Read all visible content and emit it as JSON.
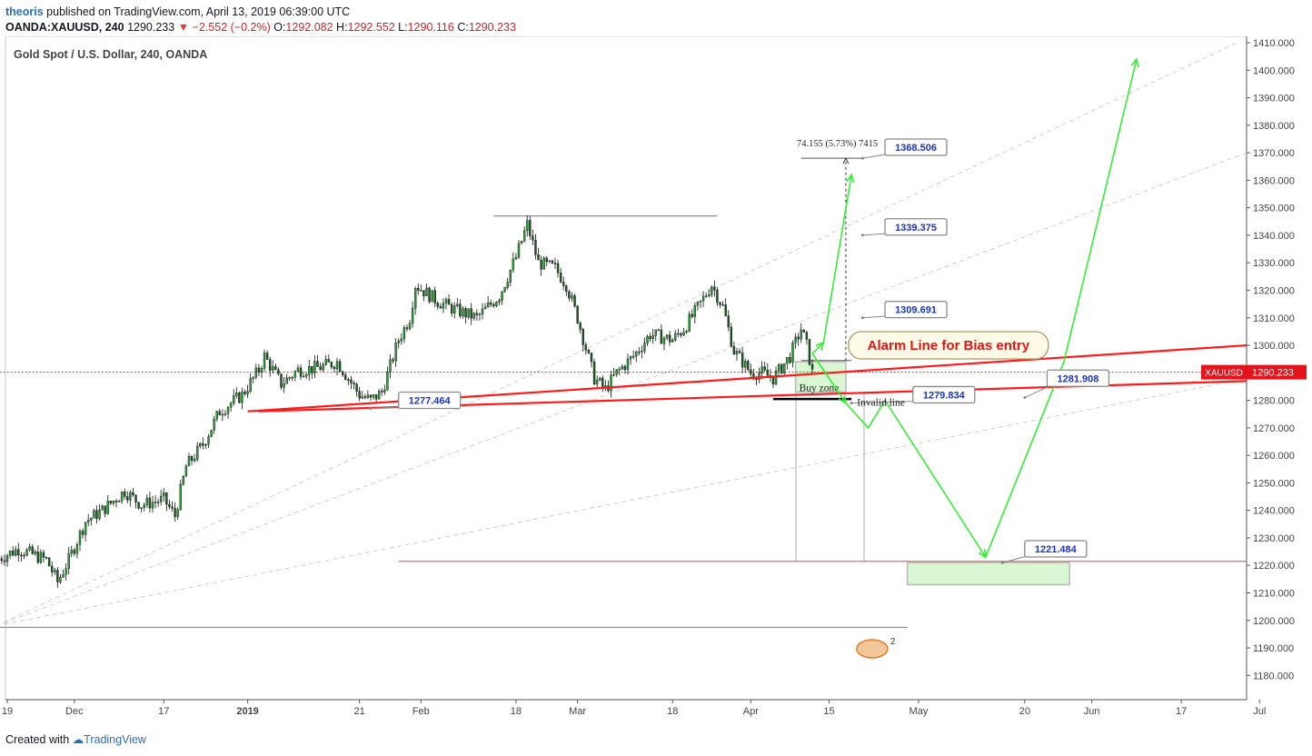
{
  "header": {
    "author": "theoris",
    "published_text": "published on TradingView.com, April 13, 2019 06:39:00 UTC",
    "symbol": "OANDA:XAUUSD, 240",
    "last": "1290.233",
    "change": "−2.552 (−0.2%)",
    "o_label": "O:",
    "o_value": "1292.082",
    "h_label": "H:",
    "h_value": "1292.552",
    "l_label": "L:",
    "l_value": "1290.116",
    "c_label": "C:",
    "c_value": "1290.233"
  },
  "footer": {
    "created_with": "Created with",
    "brand": "TradingView"
  },
  "chart_data": {
    "type": "candlestick",
    "title": "Gold Spot / U.S. Dollar, 240, OANDA",
    "y_axis": {
      "min": 1175,
      "max": 1412,
      "ticks": [
        "1180.000",
        "1190.000",
        "1200.000",
        "1210.000",
        "1220.000",
        "1230.000",
        "1240.000",
        "1250.000",
        "1260.000",
        "1270.000",
        "1280.000",
        "1290.000",
        "1300.000",
        "1310.000",
        "1320.000",
        "1330.000",
        "1340.000",
        "1350.000",
        "1360.000",
        "1370.000",
        "1380.000",
        "1390.000",
        "1400.000",
        "1410.000"
      ]
    },
    "x_axis": {
      "ticks": [
        {
          "label": "19",
          "date": "2018-11-19"
        },
        {
          "label": "Dec",
          "date": "2018-12-01"
        },
        {
          "label": "17",
          "date": "2018-12-17"
        },
        {
          "label": "2019",
          "date": "2019-01-01"
        },
        {
          "label": "21",
          "date": "2019-01-21"
        },
        {
          "label": "Feb",
          "date": "2019-02-01"
        },
        {
          "label": "18",
          "date": "2019-02-18"
        },
        {
          "label": "Mar",
          "date": "2019-03-01"
        },
        {
          "label": "18",
          "date": "2019-03-18"
        },
        {
          "label": "Apr",
          "date": "2019-04-01"
        },
        {
          "label": "15",
          "date": "2019-04-15"
        },
        {
          "label": "May",
          "date": "2019-05-01"
        },
        {
          "label": "20",
          "date": "2019-05-20"
        },
        {
          "label": "Jun",
          "date": "2019-06-01"
        },
        {
          "label": "17",
          "date": "2019-06-17"
        },
        {
          "label": "Jul",
          "date": "2019-07-01"
        }
      ]
    },
    "colors": {
      "up": "#26a69a",
      "down": "#ef5350",
      "candle": "#2e7d32",
      "trend": "#ff1a1a",
      "projection": "#33ee33"
    },
    "price_path": [
      [
        "2018-11-17",
        1222
      ],
      [
        "2018-11-21",
        1226
      ],
      [
        "2018-11-26",
        1222
      ],
      [
        "2018-11-28",
        1214
      ],
      [
        "2018-11-30",
        1222
      ],
      [
        "2018-12-03",
        1236
      ],
      [
        "2018-12-06",
        1240
      ],
      [
        "2018-12-10",
        1247
      ],
      [
        "2018-12-13",
        1242
      ],
      [
        "2018-12-17",
        1244
      ],
      [
        "2018-12-19",
        1238
      ],
      [
        "2018-12-21",
        1256
      ],
      [
        "2018-12-24",
        1264
      ],
      [
        "2018-12-27",
        1276
      ],
      [
        "2018-12-31",
        1282
      ],
      [
        "2019-01-03",
        1291
      ],
      [
        "2019-01-04",
        1296
      ],
      [
        "2019-01-07",
        1286
      ],
      [
        "2019-01-10",
        1291
      ],
      [
        "2019-01-14",
        1292
      ],
      [
        "2019-01-17",
        1294
      ],
      [
        "2019-01-21",
        1282
      ],
      [
        "2019-01-23",
        1280
      ],
      [
        "2019-01-25",
        1283
      ],
      [
        "2019-01-28",
        1302
      ],
      [
        "2019-01-30",
        1310
      ],
      [
        "2019-01-31",
        1322
      ],
      [
        "2019-02-04",
        1316
      ],
      [
        "2019-02-07",
        1313
      ],
      [
        "2019-02-11",
        1310
      ],
      [
        "2019-02-13",
        1314
      ],
      [
        "2019-02-15",
        1318
      ],
      [
        "2019-02-18",
        1332
      ],
      [
        "2019-02-20",
        1344
      ],
      [
        "2019-02-22",
        1330
      ],
      [
        "2019-02-25",
        1328
      ],
      [
        "2019-02-27",
        1322
      ],
      [
        "2019-03-01",
        1310
      ],
      [
        "2019-03-04",
        1288
      ],
      [
        "2019-03-06",
        1284
      ],
      [
        "2019-03-08",
        1290
      ],
      [
        "2019-03-11",
        1296
      ],
      [
        "2019-03-14",
        1304
      ],
      [
        "2019-03-18",
        1302
      ],
      [
        "2019-03-20",
        1306
      ],
      [
        "2019-03-22",
        1312
      ],
      [
        "2019-03-25",
        1322
      ],
      [
        "2019-03-27",
        1314
      ],
      [
        "2019-03-29",
        1298
      ],
      [
        "2019-04-01",
        1290
      ],
      [
        "2019-04-03",
        1290
      ],
      [
        "2019-04-05",
        1288
      ],
      [
        "2019-04-08",
        1296
      ],
      [
        "2019-04-10",
        1306
      ],
      [
        "2019-04-11",
        1300
      ],
      [
        "2019-04-12",
        1290
      ]
    ],
    "horizontal_lines": [
      {
        "name": "last-price-line",
        "price": 1290.233,
        "from": "2018-11-17",
        "to": "2019-07-05",
        "style": "dotted",
        "color": "#d32f2f"
      },
      {
        "name": "top-resistance-line",
        "price": 1347,
        "from": "2019-02-14",
        "to": "2019-03-26",
        "color": "#777777"
      },
      {
        "name": "target-top-line",
        "price": 1368,
        "from": "2019-04-10",
        "to": "2019-04-21",
        "color": "#555555"
      },
      {
        "name": "bottom-support-line",
        "price": 1197.5,
        "from": "2018-11-17",
        "to": "2019-04-29",
        "color": "#777777"
      },
      {
        "name": "target-low-line",
        "price": 1221.484,
        "from": "2019-01-28",
        "to": "2019-07-05",
        "color": "#ee4444"
      },
      {
        "name": "invalid-line",
        "price": 1280.5,
        "from": "2019-04-05",
        "to": "2019-04-19",
        "color": "#000000",
        "width": 2.5
      },
      {
        "name": "buy-zone-top-line",
        "price": 1294.5,
        "from": "2019-04-10",
        "to": "2019-04-19",
        "color": "#555555"
      }
    ],
    "trend_lines": [
      {
        "name": "upper-red-trendline",
        "from": [
          "2019-01-01",
          1276
        ],
        "to": [
          "2019-07-05",
          1300
        ]
      },
      {
        "name": "lower-red-trendline",
        "from": [
          "2019-01-03",
          1276
        ],
        "to": [
          "2019-07-05",
          1287
        ]
      }
    ],
    "dashed_fans": [
      {
        "from": [
          "2018-11-17",
          1198
        ],
        "to": [
          "2019-06-27",
          1410
        ]
      },
      {
        "from": [
          "2018-11-17",
          1198
        ],
        "to": [
          "2019-07-05",
          1370
        ]
      },
      {
        "from": [
          "2018-11-17",
          1198
        ],
        "to": [
          "2019-07-05",
          1288
        ]
      }
    ],
    "projection_path": [
      [
        "2019-04-12",
        1297
      ],
      [
        "2019-04-14",
        1301
      ],
      [
        "2019-04-19",
        1362
      ],
      [
        "2019-04-12",
        1297
      ],
      [
        "2019-04-18",
        1279
      ],
      [
        "2019-04-22",
        1270
      ],
      [
        "2019-04-25",
        1280
      ],
      [
        "2019-05-13",
        1223
      ],
      [
        "2019-05-27",
        1294
      ],
      [
        "2019-06-09",
        1404
      ]
    ],
    "zones": [
      {
        "name": "buy-zone-box",
        "from": "2019-04-09",
        "to": "2019-04-18",
        "top": 1294,
        "bottom": 1283,
        "label": "Buy zone"
      },
      {
        "name": "target-zone-box",
        "from": "2019-04-29",
        "to": "2019-05-28",
        "top": 1221,
        "bottom": 1213
      }
    ],
    "measure": {
      "from_price": 1294.5,
      "to_price": 1368,
      "date": "2019-04-18",
      "label": "74.155 (5.73%) 7415"
    },
    "callouts": [
      {
        "name": "label-1368",
        "text": "1368.506",
        "anchor": [
          "2019-04-21",
          1368
        ],
        "box": [
          "2019-04-25",
          1375
        ]
      },
      {
        "name": "label-1339",
        "text": "1339.375",
        "anchor": [
          "2019-04-21",
          1340
        ],
        "box": [
          "2019-04-25",
          1346
        ]
      },
      {
        "name": "label-1309",
        "text": "1309.691",
        "anchor": [
          "2019-04-21",
          1310
        ],
        "box": [
          "2019-04-25",
          1316
        ]
      },
      {
        "name": "label-1277",
        "text": "1277.464",
        "anchor": [
          "2019-01-23",
          1277
        ],
        "box": [
          "2019-01-28",
          1283
        ]
      },
      {
        "name": "label-1279",
        "text": "1279.834",
        "anchor": [
          "2019-04-19",
          1279
        ],
        "box": [
          "2019-04-30",
          1285
        ]
      },
      {
        "name": "label-1281",
        "text": "1281.908",
        "anchor": [
          "2019-05-20",
          1281
        ],
        "box": [
          "2019-05-24",
          1291
        ]
      },
      {
        "name": "label-1221",
        "text": "1221.484",
        "anchor": [
          "2019-05-16",
          1221
        ],
        "box": [
          "2019-05-20",
          1229
        ]
      }
    ],
    "annotations": [
      {
        "name": "alarm-note",
        "text": "Alarm Line for Bias entry",
        "at": [
          "2019-05-07",
          1300
        ]
      },
      {
        "name": "invalid-line-label",
        "text": "Invalid line",
        "at": [
          "2019-04-20",
          1278
        ]
      }
    ],
    "price_badge": {
      "symbol": "XAUUSD",
      "value": "1290.233",
      "color": "#e3141b"
    },
    "event_marker": {
      "text": "2",
      "date": "2019-04-24"
    }
  }
}
